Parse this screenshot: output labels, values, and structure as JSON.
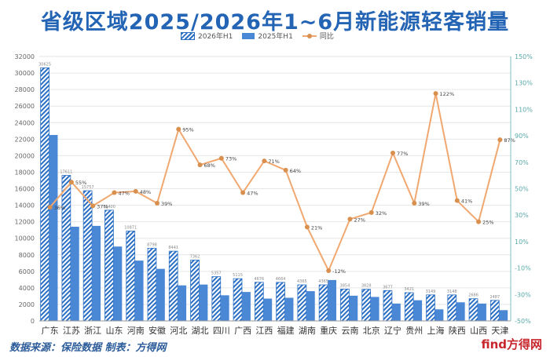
{
  "title": "省级区域2025/2026年1~6月新能源轻客销量",
  "legend": {
    "s1": "2026年H1",
    "s2": "2025年H1",
    "s3": "同比"
  },
  "source": "数据来源：保险数据 制表：方得网",
  "watermark": "find方得网",
  "colors": {
    "s1": "#2a6fc4",
    "s2": "#4a88d6",
    "line": "#f0a870",
    "dot": "#d9904f",
    "title": "#2464b4"
  },
  "chart_data": {
    "type": "bar",
    "categories": [
      "广东",
      "江苏",
      "浙江",
      "山东",
      "河南",
      "安徽",
      "河北",
      "湖北",
      "四川",
      "广西",
      "江西",
      "福建",
      "湖南",
      "重庆",
      "云南",
      "北京",
      "辽宁",
      "贵州",
      "上海",
      "陕西",
      "山西",
      "天津"
    ],
    "series": [
      {
        "name": "2026年H1",
        "values": [
          30625,
          17611,
          15757,
          13400,
          10871,
          8798,
          8441,
          7362,
          5357,
          5115,
          4676,
          4664,
          4365,
          4365,
          3854,
          3828,
          3677,
          3421,
          3149,
          3148,
          2686,
          2487
        ],
        "value_labels": [
          "30625",
          "17611",
          "15757",
          "13400",
          "10871",
          "8798",
          "8441",
          "7362",
          "5357",
          "5115",
          "4676",
          "4664",
          "4365",
          "4365",
          "3854",
          "3828",
          "3677",
          "3421",
          "3149",
          "3148",
          "2686",
          "2487"
        ]
      },
      {
        "name": "2025年H1",
        "values": [
          22500,
          11400,
          11500,
          9000,
          7300,
          6300,
          4300,
          4400,
          3100,
          3500,
          2700,
          2800,
          3600,
          4950,
          3050,
          2900,
          2100,
          2500,
          1400,
          2250,
          2100,
          1300
        ]
      },
      {
        "name": "同比",
        "axis": "right",
        "values": [
          36,
          55,
          37,
          47,
          48,
          39,
          95,
          68,
          73,
          47,
          71,
          64,
          21,
          -12,
          27,
          32,
          77,
          39,
          122,
          41,
          25,
          87
        ],
        "value_labels": [
          "36%",
          "55%",
          "37%",
          "47%",
          "48%",
          "39%",
          "95%",
          "68%",
          "73%",
          "47%",
          "71%",
          "64%",
          "21%",
          "-12%",
          "27%",
          "32%",
          "77%",
          "39%",
          "122%",
          "41%",
          "25%",
          "87%"
        ]
      }
    ],
    "ylim": [
      0,
      32000
    ],
    "yticks": [
      "0",
      "2000",
      "4000",
      "6000",
      "8000",
      "10000",
      "12000",
      "14000",
      "16000",
      "18000",
      "20000",
      "22000",
      "24000",
      "26000",
      "28000",
      "30000",
      "32000"
    ],
    "y2lim": [
      -50,
      150
    ],
    "y2ticks": [
      "-50%",
      "-30%",
      "-10%",
      "10%",
      "30%",
      "50%",
      "70%",
      "90%",
      "110%",
      "130%",
      "150%"
    ],
    "grid": true,
    "legend_position": "top-center"
  }
}
